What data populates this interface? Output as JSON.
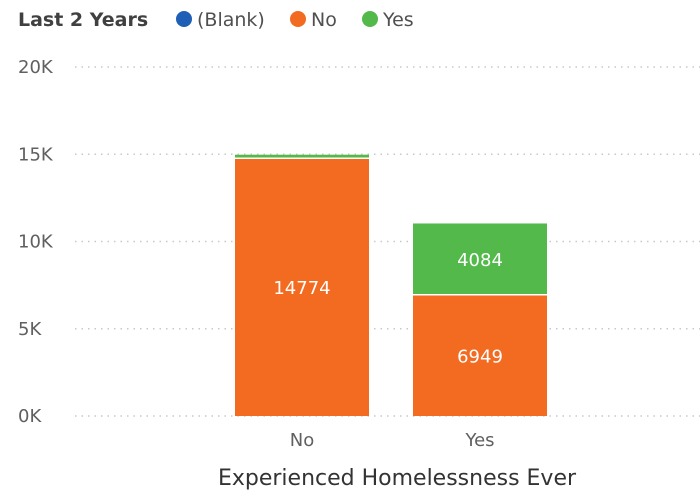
{
  "chart_data": {
    "type": "bar",
    "stacked": true,
    "legend_title": "Last 2 Years",
    "legend_position": "top-left",
    "categories": [
      "No",
      "Yes"
    ],
    "series": [
      {
        "name": "(Blank)",
        "color": "#1f5fb5",
        "values": [
          0,
          0
        ],
        "labels": [
          "",
          ""
        ]
      },
      {
        "name": "No",
        "color": "#f26b21",
        "values": [
          14774,
          6949
        ],
        "labels": [
          "14774",
          "6949"
        ]
      },
      {
        "name": "Yes",
        "color": "#52b94a",
        "values": [
          200,
          4084
        ],
        "labels": [
          "",
          "4084"
        ]
      }
    ],
    "xlabel": "Experienced Homelessness Ever",
    "ylabel": "",
    "ylim": [
      0,
      20000
    ],
    "yticks": [
      {
        "value": 0,
        "label": "0K"
      },
      {
        "value": 5000,
        "label": "5K"
      },
      {
        "value": 10000,
        "label": "10K"
      },
      {
        "value": 15000,
        "label": "15K"
      },
      {
        "value": 20000,
        "label": "20K"
      }
    ],
    "grid": true
  }
}
